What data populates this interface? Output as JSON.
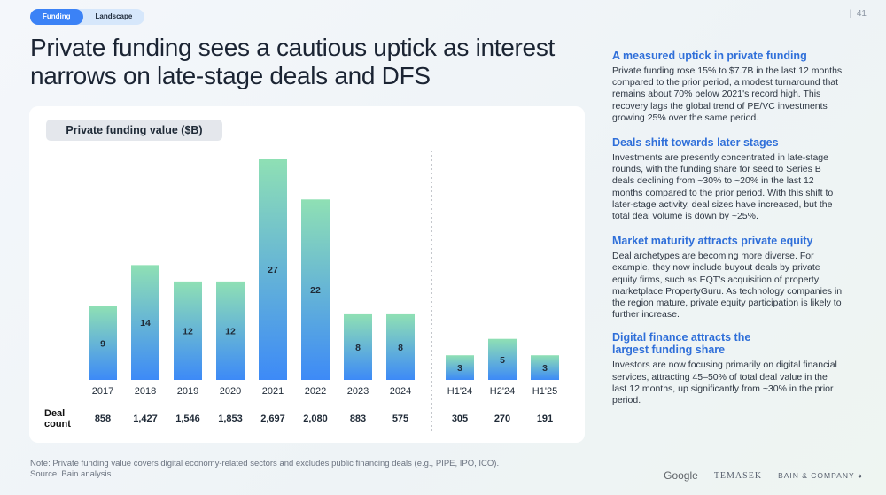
{
  "tabs": [
    "Funding",
    "Landscape"
  ],
  "page_number": "41",
  "title": "Private funding sees a cautious uptick as interest narrows on late-stage deals and DFS",
  "chart_label": "Private funding value ($B)",
  "chart_data": {
    "type": "bar",
    "title": "Private funding value ($B)",
    "categories": [
      "2017",
      "2018",
      "2019",
      "2020",
      "2021",
      "2022",
      "2023",
      "2024",
      "H1'24",
      "H2'24",
      "H1'25"
    ],
    "values": [
      9,
      14,
      12,
      12,
      27,
      22,
      8,
      8,
      3,
      5,
      3
    ],
    "value_labels": [
      "9",
      "14",
      "12",
      "12",
      "27",
      "22",
      "8",
      "8",
      "3",
      "5",
      "3"
    ],
    "deal_count_label": "Deal count",
    "deal_counts": [
      "858",
      "1,427",
      "1,546",
      "1,853",
      "2,697",
      "2,080",
      "883",
      "575",
      "305",
      "270",
      "191"
    ],
    "colors": {
      "top": "#8fe0b4",
      "bottom": "#3d8af7"
    }
  },
  "deal_label_line1": "Deal",
  "deal_label_line2": "count",
  "note": "Note: Private funding value covers digital economy-related sectors and excludes public financing deals (e.g., PIPE, IPO, ICO).",
  "source": "Source: Bain analysis",
  "sections": [
    {
      "heading": "A measured uptick in private funding",
      "body": "Private funding rose 15% to $7.7B in the last 12 months compared to the prior period, a modest turnaround that remains about 70% below 2021's record high. This recovery lags the global trend of PE/VC investments growing 25% over the same period."
    },
    {
      "heading": "Deals shift towards later stages",
      "body": "Investments are presently concentrated in late-stage rounds, with the funding share for seed to Series B deals declining from ~30% to ~20% in the last 12 months compared to the prior period. With this shift to later-stage activity, deal sizes have increased, but the total deal volume is down by ~25%."
    },
    {
      "heading": "Market maturity attracts private equity",
      "body": "Deal archetypes are becoming more diverse. For example, they now include buyout deals by private equity firms, such as EQT's acquisition of property marketplace PropertyGuru. As technology companies in the region mature, private equity participation is likely to further increase."
    },
    {
      "heading": "Digital finance attracts the largest funding share",
      "body": "Investors are now focusing primarily on digital financial services, attracting 45–50% of total deal value in the last 12 months, up significantly from ~30% in the prior period."
    }
  ],
  "logos": [
    "Google",
    "TEMASEK",
    "BAIN & COMPANY"
  ]
}
